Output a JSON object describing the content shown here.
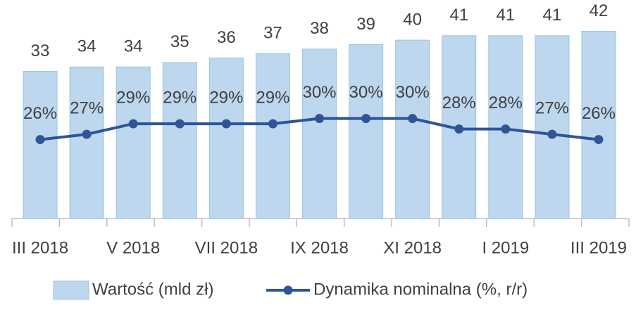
{
  "chart_data": {
    "type": "bar-line",
    "categories": [
      "III 2018",
      null,
      "V 2018",
      null,
      "VII 2018",
      null,
      "IX 2018",
      null,
      "XI 2018",
      null,
      "I 2019",
      null,
      "III 2019"
    ],
    "series": [
      {
        "name": "Wartość (mld zł)",
        "type": "bar",
        "color": "#bdd7ee",
        "values": [
          33,
          34,
          34,
          35,
          36,
          37,
          38,
          39,
          40,
          41,
          41,
          41,
          42
        ]
      },
      {
        "name": "Dynamika nominalna (%, r/r)",
        "type": "line",
        "axis": "y2",
        "color": "#2f5597",
        "values": [
          26,
          27,
          29,
          29,
          29,
          29,
          30,
          30,
          30,
          28,
          28,
          27,
          26
        ],
        "value_labels": [
          "26%",
          "27%",
          "29%",
          "29%",
          "29%",
          "29%",
          "30%",
          "30%",
          "30%",
          "28%",
          "28%",
          "27%",
          "26%"
        ]
      }
    ],
    "ylim": [
      0,
      49
    ],
    "y2lim": [
      11,
      52.5
    ],
    "legend": "bottom"
  }
}
